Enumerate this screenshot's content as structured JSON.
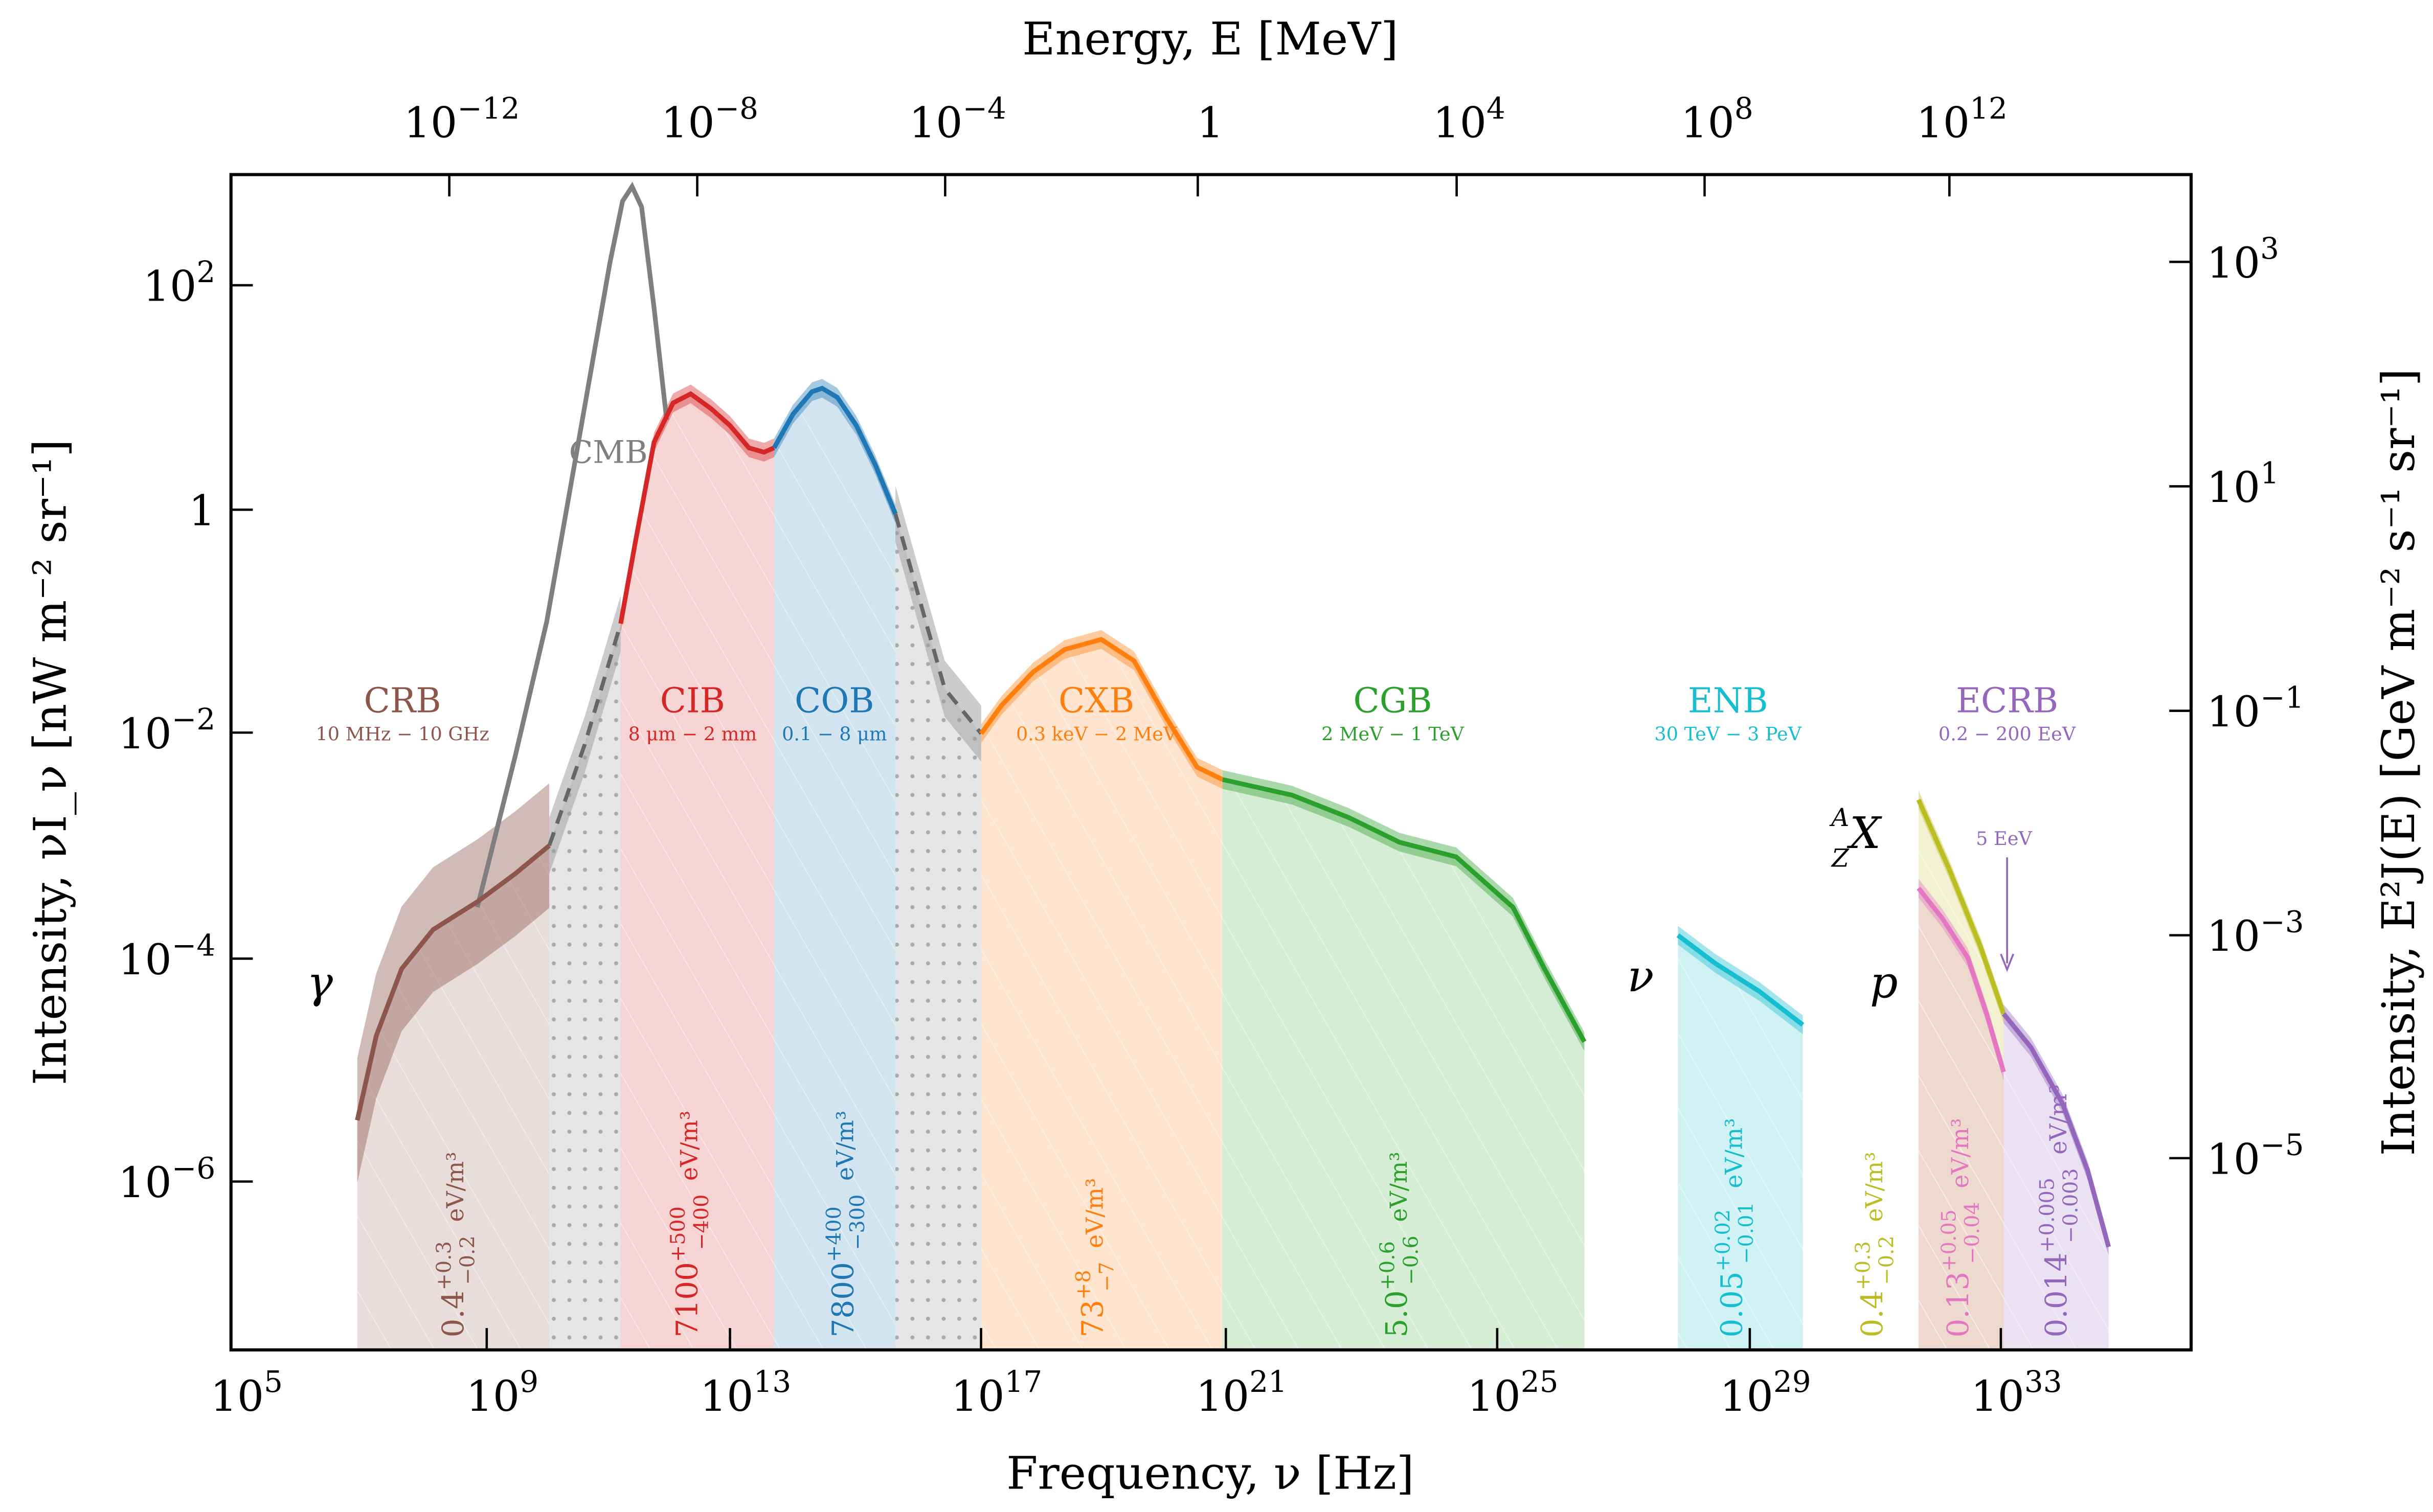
{
  "chart_data": {
    "type": "area",
    "xlabel": "Frequency, ν [Hz]",
    "ylabel": "Intensity, νI_ν [nW m⁻² sr⁻¹]",
    "top_xlabel": "Energy, E [MeV]",
    "right_ylabel": "Intensity, E²J(E) [GeV m⁻² s⁻¹ sr⁻¹]",
    "xscale": "log",
    "yscale": "log",
    "xlim": [
      100000.0,
      1e+36
    ],
    "ylim": [
      3e-08,
      1000.0
    ],
    "x_ticks": [
      "10^5",
      "10^9",
      "10^13",
      "10^17",
      "10^21",
      "10^25",
      "10^29",
      "10^33"
    ],
    "y_ticks": [
      "10^2",
      "1",
      "10^-2",
      "10^-4",
      "10^-6"
    ],
    "top_ticks": [
      "10^-12",
      "10^-8",
      "10^-4",
      "1",
      "10^4",
      "10^8",
      "10^12"
    ],
    "right_ticks": [
      "10^3",
      "10^1",
      "10^-1",
      "10^-3",
      "10^-5"
    ],
    "grid": false,
    "series": [
      {
        "name": "CMB",
        "color": "#7f7f7f",
        "fill": false,
        "points": [
          [
            8.9,
            -3.55
          ],
          [
            9.5,
            -2.2
          ],
          [
            10,
            -1.0
          ],
          [
            10.5,
            0.6
          ],
          [
            11,
            2.2
          ],
          [
            11.2,
            2.75
          ],
          [
            11.35,
            2.88
          ],
          [
            11.5,
            2.7
          ],
          [
            11.7,
            1.8
          ],
          [
            11.9,
            0.8
          ]
        ]
      },
      {
        "name": "CRB",
        "range": "10 MHz − 10 GHz",
        "energy_density": {
          "value": "0.4",
          "plus": "+0.3",
          "minus": "−0.2",
          "unit": "eV/m³"
        },
        "color": "#8c564b",
        "points": [
          [
            7.0,
            -5.45
          ],
          [
            7.3,
            -4.7
          ],
          [
            7.7,
            -4.1
          ],
          [
            8.2,
            -3.75
          ],
          [
            8.9,
            -3.5
          ],
          [
            9.5,
            -3.25
          ],
          [
            10.04,
            -3.0
          ]
        ]
      },
      {
        "name": "CIB",
        "range": "8 μm − 2 mm",
        "energy_density": {
          "value": "7100",
          "plus": "+500",
          "minus": "−400",
          "unit": "eV/m³"
        },
        "color": "#d62728",
        "points": [
          [
            11.17,
            -1.02
          ],
          [
            11.4,
            -0.3
          ],
          [
            11.7,
            0.6
          ],
          [
            12.0,
            0.95
          ],
          [
            12.28,
            1.03
          ],
          [
            12.6,
            0.9
          ],
          [
            12.9,
            0.75
          ],
          [
            13.2,
            0.55
          ],
          [
            13.44,
            0.51
          ],
          [
            13.6,
            0.55
          ]
        ]
      },
      {
        "name": "COB",
        "range": "0.1 − 8 μm",
        "energy_density": {
          "value": "7800",
          "plus": "+400",
          "minus": "−300",
          "unit": "eV/m³"
        },
        "color": "#1f77b4",
        "points": [
          [
            13.6,
            0.55
          ],
          [
            13.9,
            0.85
          ],
          [
            14.2,
            1.05
          ],
          [
            14.36,
            1.08
          ],
          [
            14.6,
            1.0
          ],
          [
            14.9,
            0.75
          ],
          [
            15.2,
            0.4
          ],
          [
            15.52,
            -0.04
          ]
        ]
      },
      {
        "name": "CXB",
        "range": "0.3 keV − 2 MeV",
        "energy_density": {
          "value": "73",
          "plus": "+8",
          "minus": "−7",
          "unit": "eV/m³"
        },
        "color": "#ff7f0e",
        "points": [
          [
            16.88,
            -2.0
          ],
          [
            17.2,
            -1.75
          ],
          [
            17.7,
            -1.45
          ],
          [
            18.2,
            -1.25
          ],
          [
            18.78,
            -1.16
          ],
          [
            19.3,
            -1.35
          ],
          [
            19.8,
            -1.85
          ],
          [
            20.3,
            -2.3
          ],
          [
            20.7,
            -2.41
          ]
        ]
      },
      {
        "name": "CGB",
        "range": "2 MeV − 1 TeV",
        "energy_density": {
          "value": "5.0",
          "plus": "+0.6",
          "minus": "−0.6",
          "unit": "eV/m³"
        },
        "color": "#2ca02c",
        "points": [
          [
            20.7,
            -2.41
          ],
          [
            21.8,
            -2.55
          ],
          [
            22.7,
            -2.75
          ],
          [
            23.5,
            -2.97
          ],
          [
            24.4,
            -3.1
          ],
          [
            25.3,
            -3.55
          ],
          [
            25.8,
            -4.1
          ],
          [
            26.43,
            -4.75
          ]
        ]
      },
      {
        "name": "ENB",
        "symbol": "ν",
        "range": "30 TeV − 3 PeV",
        "energy_density": {
          "value": "0.05",
          "plus": "+0.02",
          "minus": "−0.01",
          "unit": "eV/m³"
        },
        "color": "#17becf",
        "points": [
          [
            27.91,
            -3.8
          ],
          [
            28.5,
            -4.05
          ],
          [
            29.2,
            -4.3
          ],
          [
            29.89,
            -4.6
          ]
        ]
      },
      {
        "name": "nuclei",
        "symbol": "AZX",
        "energy_density": {
          "value": "0.4",
          "plus": "+0.3",
          "minus": "−0.2",
          "unit": "eV/m³"
        },
        "color": "#bcbd22",
        "points": [
          [
            31.72,
            -2.59
          ],
          [
            32.2,
            -3.2
          ],
          [
            32.7,
            -3.9
          ],
          [
            33.07,
            -4.5
          ]
        ]
      },
      {
        "name": "protons",
        "symbol": "p",
        "energy_density": {
          "value": "0.13",
          "plus": "+0.05",
          "minus": "−0.04",
          "unit": "eV/m³"
        },
        "color": "#e377c2",
        "points": [
          [
            31.72,
            -3.38
          ],
          [
            32.1,
            -3.65
          ],
          [
            32.5,
            -4.0
          ],
          [
            32.8,
            -4.5
          ],
          [
            33.07,
            -5.02
          ]
        ]
      },
      {
        "name": "ECRB",
        "range": "0.2 − 200 EeV",
        "energy_density": {
          "value": "0.014",
          "plus": "+0.005",
          "minus": "−0.003",
          "unit": "eV/m³"
        },
        "color": "#9467bd",
        "points": [
          [
            33.07,
            -4.5
          ],
          [
            33.5,
            -4.8
          ],
          [
            34.0,
            -5.3
          ],
          [
            34.4,
            -5.9
          ],
          [
            34.73,
            -6.58
          ]
        ]
      }
    ],
    "gaps": [
      {
        "from": 10.04,
        "to": 11.17,
        "points": [
          [
            10.04,
            -3.0
          ],
          [
            10.6,
            -2.1
          ],
          [
            11.17,
            -1.02
          ]
        ]
      },
      {
        "from": 15.52,
        "to": 16.88,
        "points": [
          [
            15.52,
            -0.04
          ],
          [
            15.9,
            -0.8
          ],
          [
            16.3,
            -1.6
          ],
          [
            16.88,
            -2.0
          ]
        ]
      }
    ],
    "annotations": {
      "gamma": "γ",
      "nu": "ν",
      "p": "p",
      "nuclei_A": "A",
      "nuclei_Z": "Z",
      "nuclei_X": "X",
      "ankle": "5 EeV",
      "cmb": "CMB"
    }
  }
}
